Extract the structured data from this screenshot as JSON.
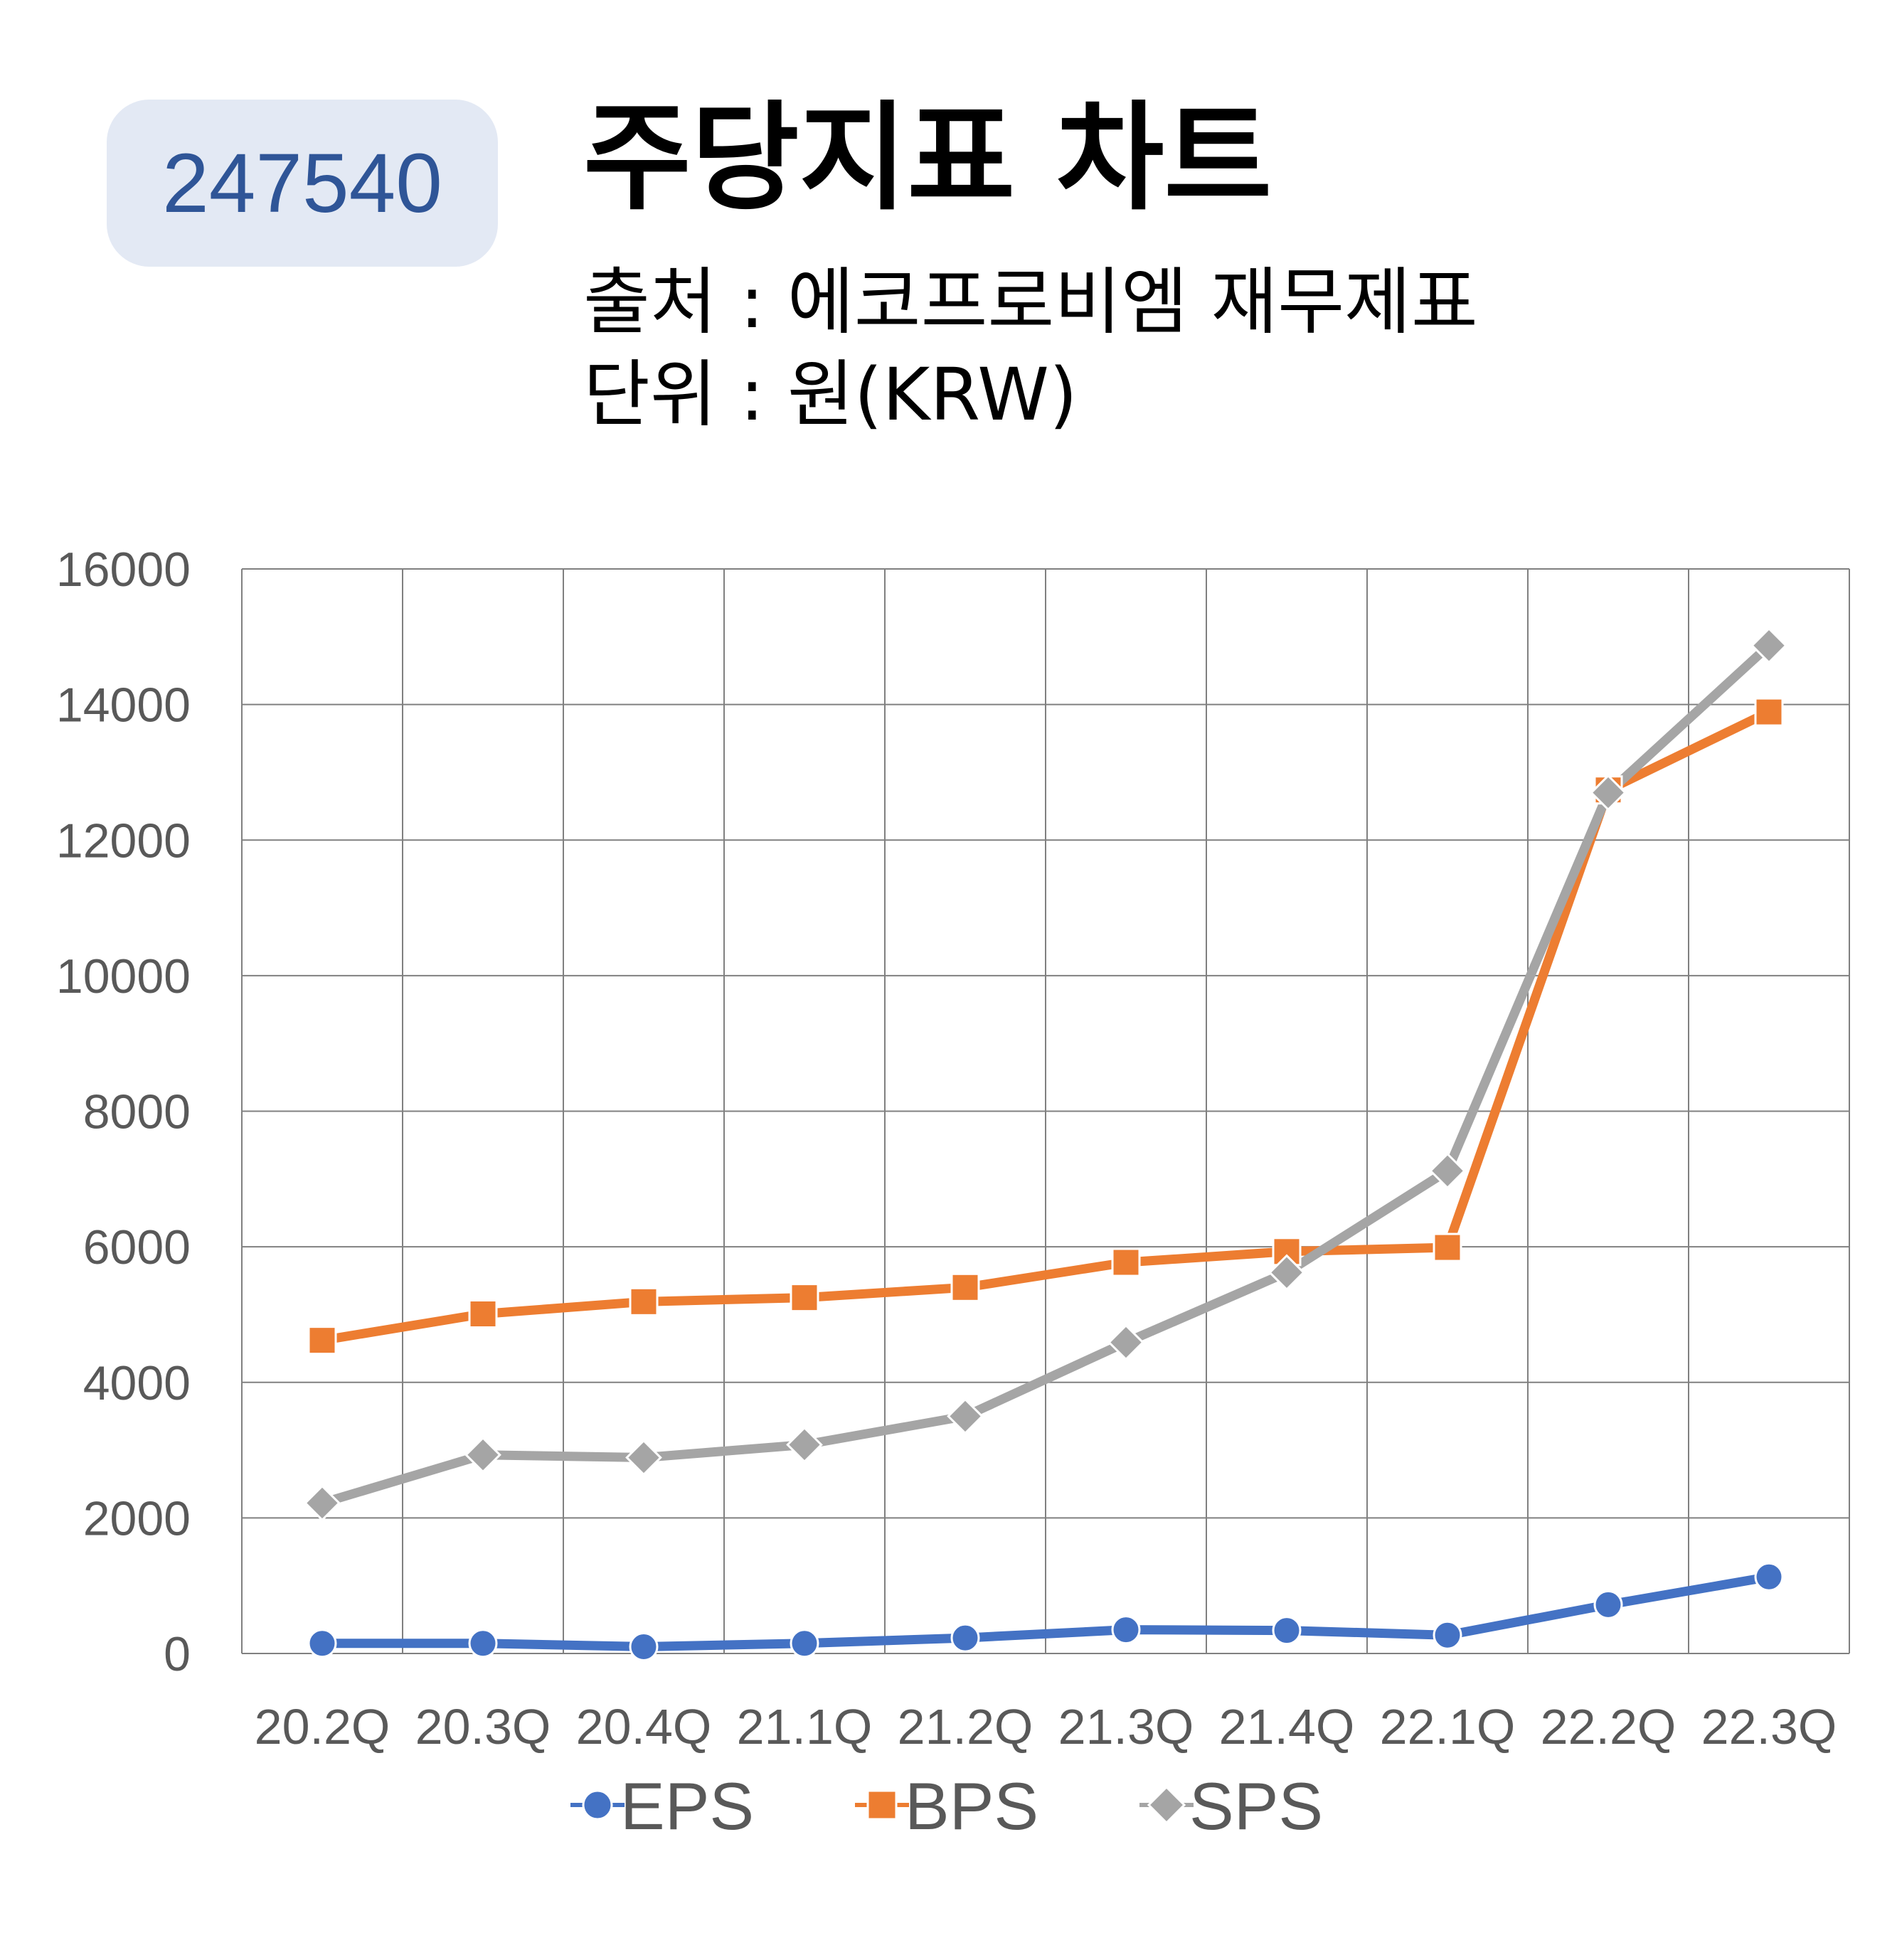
{
  "header": {
    "code": "247540",
    "title": "주당지표 차트",
    "source": "출처 : 에코프로비엠 재무제표",
    "unit": "단위 : 원(KRW)"
  },
  "chart_data": {
    "type": "line",
    "categories": [
      "20.2Q",
      "20.3Q",
      "20.4Q",
      "21.1Q",
      "21.2Q",
      "21.3Q",
      "21.4Q",
      "22.1Q",
      "22.2Q",
      "22.3Q"
    ],
    "series": [
      {
        "name": "EPS",
        "color": "#4472c4",
        "marker": "circle",
        "values": [
          150,
          150,
          100,
          150,
          230,
          350,
          340,
          270,
          720,
          1130
        ]
      },
      {
        "name": "BPS",
        "color": "#ed7d31",
        "marker": "square",
        "values": [
          4620,
          5010,
          5190,
          5250,
          5400,
          5770,
          5930,
          5990,
          12740,
          13890
        ]
      },
      {
        "name": "SPS",
        "color": "#a5a5a5",
        "marker": "diamond",
        "values": [
          2220,
          2930,
          2890,
          3080,
          3500,
          4590,
          5620,
          7120,
          12700,
          14870
        ]
      }
    ],
    "ylim": [
      0,
      16000
    ],
    "yticks": [
      0,
      2000,
      4000,
      6000,
      8000,
      10000,
      12000,
      14000,
      16000
    ],
    "grid": true,
    "legend": "bottom"
  }
}
